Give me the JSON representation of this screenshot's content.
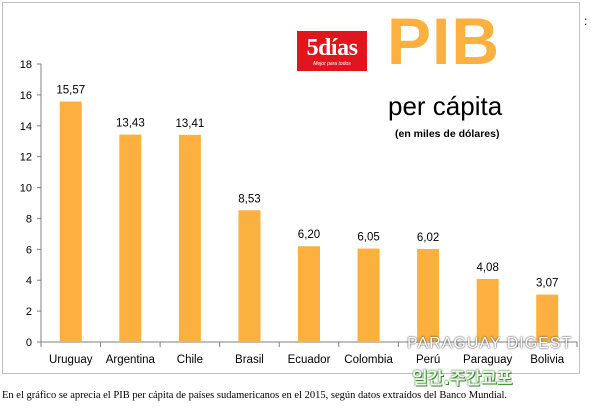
{
  "logo": {
    "main": "5días",
    "sub": "Mejor para todos"
  },
  "header": {
    "title": "PIB",
    "subtitle": "per cápita",
    "unit_note": "(en miles de dólares)"
  },
  "edge_mark": ":",
  "watermarks": {
    "line1": "PARAGUAY DIGEST",
    "line2": "일간.주간교포"
  },
  "caption": "En el gráfico se aprecia el PIB per cápita de países sudamericanos en el 2015, según datos extraídos del Banco Mundial.",
  "colors": {
    "bar": "#fbb040",
    "title": "#fbb040",
    "logo_bg": "#e0161f"
  },
  "chart_data": {
    "type": "bar",
    "categories": [
      "Uruguay",
      "Argentina",
      "Chile",
      "Brasil",
      "Ecuador",
      "Colombia",
      "Perú",
      "Paraguay",
      "Bolivia"
    ],
    "values": [
      15.57,
      13.43,
      13.41,
      8.53,
      6.2,
      6.05,
      6.02,
      4.08,
      3.07
    ],
    "data_labels": [
      "15,57",
      "13,43",
      "13,41",
      "8,53",
      "6,20",
      "6,05",
      "6,02",
      "4,08",
      "3,07"
    ],
    "y_ticks": [
      0,
      2,
      4,
      6,
      8,
      10,
      12,
      14,
      16,
      18
    ],
    "ylim": [
      0,
      18
    ],
    "grid": false,
    "legend": "none"
  }
}
